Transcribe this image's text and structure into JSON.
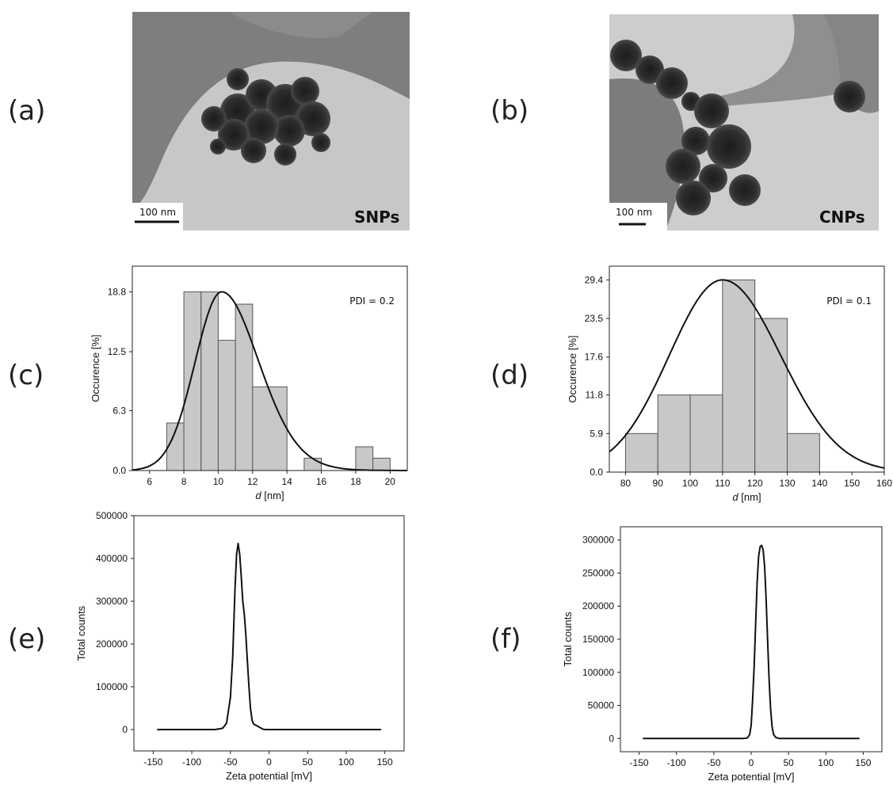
{
  "panel_labels": {
    "a": "(a)",
    "b": "(b)",
    "c": "(c)",
    "d": "(d)",
    "e": "(e)",
    "f": "(f)"
  },
  "tem_images": {
    "a": {
      "label": "SNPs",
      "scale_bar": "100 nm"
    },
    "b": {
      "label": "CNPs",
      "scale_bar": "100 nm"
    }
  },
  "chart_data": [
    {
      "id": "c",
      "type": "bar",
      "xlabel": "d [nm]",
      "ylabel": "Occurence [%]",
      "xlim": [
        5,
        21
      ],
      "ylim": [
        0,
        21.5
      ],
      "xticks": [
        6,
        8,
        10,
        12,
        14,
        16,
        18,
        20
      ],
      "yticks": [
        0.0,
        6.3,
        12.5,
        18.8
      ],
      "ytick_labels": [
        "0.0",
        "6.3",
        "12.5",
        "18.8"
      ],
      "annotation": "PDI = 0.2",
      "bins": [
        {
          "x0": 7,
          "x1": 8,
          "value": 5.0
        },
        {
          "x0": 8,
          "x1": 9,
          "value": 18.8
        },
        {
          "x0": 9,
          "x1": 10,
          "value": 18.8
        },
        {
          "x0": 10,
          "x1": 11,
          "value": 13.7
        },
        {
          "x0": 11,
          "x1": 12,
          "value": 17.5
        },
        {
          "x0": 12,
          "x1": 14,
          "value": 8.8
        },
        {
          "x0": 15,
          "x1": 16,
          "value": 1.3
        },
        {
          "x0": 18,
          "x1": 19,
          "value": 2.5
        },
        {
          "x0": 19,
          "x1": 20,
          "value": 1.3
        }
      ],
      "fit": {
        "model": "lognormal",
        "peak_x": 10.2,
        "peak_y": 18.8,
        "sigma_left": 1.55,
        "sigma_right": 2.1
      }
    },
    {
      "id": "d",
      "type": "bar",
      "xlabel": "d [nm]",
      "ylabel": "Occurence [%]",
      "xlim": [
        75,
        160
      ],
      "ylim": [
        0,
        31.5
      ],
      "xticks": [
        80,
        90,
        100,
        110,
        120,
        130,
        140,
        150,
        160
      ],
      "yticks": [
        0.0,
        5.9,
        11.8,
        17.6,
        23.5,
        29.4
      ],
      "ytick_labels": [
        "0.0",
        "5.9",
        "11.8",
        "17.6",
        "23.5",
        "29.4"
      ],
      "annotation": "PDI = 0.1",
      "bins": [
        {
          "x0": 80,
          "x1": 90,
          "value": 5.9
        },
        {
          "x0": 90,
          "x1": 100,
          "value": 11.8
        },
        {
          "x0": 100,
          "x1": 110,
          "value": 11.8
        },
        {
          "x0": 110,
          "x1": 120,
          "value": 29.4
        },
        {
          "x0": 120,
          "x1": 130,
          "value": 23.5
        },
        {
          "x0": 130,
          "x1": 140,
          "value": 5.9
        }
      ],
      "fit": {
        "model": "gaussian",
        "peak_x": 110,
        "peak_y": 29.4,
        "sigma_left": 16.5,
        "sigma_right": 18
      }
    },
    {
      "id": "e",
      "type": "line",
      "xlabel": "Zeta potential [mV]",
      "ylabel": "Total counts",
      "xlim": [
        -175,
        175
      ],
      "ylim": [
        -50000,
        500000
      ],
      "xticks": [
        -150,
        -100,
        -50,
        0,
        50,
        100,
        150
      ],
      "yticks": [
        0,
        100000,
        200000,
        300000,
        400000,
        500000
      ],
      "ytick_labels": [
        "0",
        "100000",
        "200000",
        "300000",
        "400000",
        "500000"
      ],
      "series": [
        {
          "x": [
            -145,
            -70,
            -60,
            -55,
            -50,
            -47,
            -44,
            -42,
            -40,
            -38,
            -36,
            -34,
            -32,
            -30,
            -28,
            -26,
            -24,
            -22,
            -20,
            -18,
            -16,
            -12,
            -8,
            -5,
            0,
            50,
            145
          ],
          "y": [
            0,
            0,
            3000,
            15000,
            75000,
            170000,
            330000,
            410000,
            435000,
            410000,
            360000,
            300000,
            270000,
            220000,
            160000,
            100000,
            50000,
            22000,
            13000,
            11000,
            9000,
            5000,
            1000,
            0,
            0,
            0,
            0
          ]
        }
      ]
    },
    {
      "id": "f",
      "type": "line",
      "xlabel": "Zeta potential [mV]",
      "ylabel": "Total counts",
      "xlim": [
        -175,
        175
      ],
      "ylim": [
        -20000,
        320000
      ],
      "xticks": [
        -150,
        -100,
        -50,
        0,
        50,
        100,
        150
      ],
      "yticks": [
        0,
        50000,
        100000,
        150000,
        200000,
        250000,
        300000
      ],
      "ytick_labels": [
        "0",
        "50000",
        "100000",
        "150000",
        "200000",
        "250000",
        "300000"
      ],
      "series": [
        {
          "x": [
            -145,
            -10,
            -5,
            -2,
            0,
            2,
            4,
            6,
            8,
            10,
            12,
            14,
            16,
            18,
            20,
            22,
            24,
            26,
            28,
            30,
            33,
            38,
            145
          ],
          "y": [
            0,
            0,
            1000,
            6000,
            20000,
            60000,
            110000,
            175000,
            235000,
            275000,
            290000,
            292000,
            285000,
            260000,
            210000,
            150000,
            90000,
            45000,
            18000,
            6000,
            1500,
            0,
            0
          ]
        }
      ]
    }
  ]
}
